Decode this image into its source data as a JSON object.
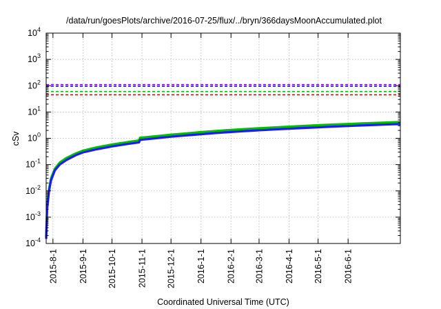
{
  "chart_data": {
    "type": "line",
    "title": "/data/run/goesPlots/archive/2016-07-25/flux/../bryn/366daysMoonAccumulated.plot",
    "xlabel": "Coordinated Universal Time (UTC)",
    "ylabel": "cSv",
    "yscale": "log",
    "ylim": [
      0.0001,
      10000
    ],
    "xlim": [
      "2015-07-25",
      "2016-07-25"
    ],
    "grid": true,
    "legend": "none",
    "x_ticks": [
      {
        "label": "2015-8-1",
        "date": "2015-08-01"
      },
      {
        "label": "2015-9-1",
        "date": "2015-09-01"
      },
      {
        "label": "2015-10-1",
        "date": "2015-10-01"
      },
      {
        "label": "2015-11-1",
        "date": "2015-11-01"
      },
      {
        "label": "2015-12-1",
        "date": "2015-12-01"
      },
      {
        "label": "2016-1-1",
        "date": "2016-01-01"
      },
      {
        "label": "2016-2-1",
        "date": "2016-02-01"
      },
      {
        "label": "2016-3-1",
        "date": "2016-03-01"
      },
      {
        "label": "2016-4-1",
        "date": "2016-04-01"
      },
      {
        "label": "2016-5-1",
        "date": "2016-05-01"
      },
      {
        "label": "2016-6-1",
        "date": "2016-06-01"
      }
    ],
    "y_ticks": [
      {
        "base": "10",
        "exp": "-4",
        "value": 0.0001
      },
      {
        "base": "10",
        "exp": "-3",
        "value": 0.001
      },
      {
        "base": "10",
        "exp": "-2",
        "value": 0.01
      },
      {
        "base": "10",
        "exp": "-1",
        "value": 0.1
      },
      {
        "base": "10",
        "exp": "0",
        "value": 1
      },
      {
        "base": "10",
        "exp": "1",
        "value": 10
      },
      {
        "base": "10",
        "exp": "2",
        "value": 100
      },
      {
        "base": "10",
        "exp": "3",
        "value": 1000
      },
      {
        "base": "10",
        "exp": "4",
        "value": 10000
      }
    ],
    "thresholds": [
      {
        "value": 110,
        "color": "#9400d3"
      },
      {
        "value": 95,
        "color": "#1a1aff"
      },
      {
        "value": 60,
        "color": "#00c000"
      },
      {
        "value": 45,
        "color": "#e00000"
      }
    ],
    "series": [
      {
        "color": "#00c000",
        "points": [
          [
            "2015-07-25",
            0.00018
          ],
          [
            "2015-07-26",
            0.0025
          ],
          [
            "2015-07-28",
            0.012
          ],
          [
            "2015-07-30",
            0.03
          ],
          [
            "2015-08-03",
            0.07
          ],
          [
            "2015-08-08",
            0.12
          ],
          [
            "2015-08-15",
            0.18
          ],
          [
            "2015-08-25",
            0.27
          ],
          [
            "2015-09-01",
            0.34
          ],
          [
            "2015-09-15",
            0.45
          ],
          [
            "2015-10-01",
            0.58
          ],
          [
            "2015-10-15",
            0.7
          ],
          [
            "2015-10-29",
            0.84
          ],
          [
            "2015-10-30",
            1.05
          ],
          [
            "2015-11-15",
            1.2
          ],
          [
            "2015-12-01",
            1.38
          ],
          [
            "2015-12-15",
            1.52
          ],
          [
            "2016-01-01",
            1.72
          ],
          [
            "2016-01-15",
            1.88
          ],
          [
            "2016-02-01",
            2.08
          ],
          [
            "2016-02-15",
            2.24
          ],
          [
            "2016-03-01",
            2.42
          ],
          [
            "2016-03-15",
            2.58
          ],
          [
            "2016-04-01",
            2.78
          ],
          [
            "2016-04-15",
            2.95
          ],
          [
            "2016-05-01",
            3.15
          ],
          [
            "2016-05-15",
            3.32
          ],
          [
            "2016-06-01",
            3.52
          ],
          [
            "2016-06-15",
            3.7
          ],
          [
            "2016-07-01",
            3.88
          ],
          [
            "2016-07-15",
            4.05
          ],
          [
            "2016-07-25",
            4.15
          ]
        ]
      },
      {
        "color": "#1a1aff",
        "points": [
          [
            "2015-07-25",
            0.00015
          ],
          [
            "2015-07-26",
            0.002
          ],
          [
            "2015-07-28",
            0.01
          ],
          [
            "2015-07-30",
            0.025
          ],
          [
            "2015-08-03",
            0.06
          ],
          [
            "2015-08-08",
            0.1
          ],
          [
            "2015-08-15",
            0.15
          ],
          [
            "2015-08-25",
            0.23
          ],
          [
            "2015-09-01",
            0.29
          ],
          [
            "2015-09-15",
            0.38
          ],
          [
            "2015-10-01",
            0.49
          ],
          [
            "2015-10-15",
            0.59
          ],
          [
            "2015-10-29",
            0.7
          ],
          [
            "2015-10-30",
            0.87
          ],
          [
            "2015-11-15",
            1.0
          ],
          [
            "2015-12-01",
            1.15
          ],
          [
            "2015-12-15",
            1.27
          ],
          [
            "2016-01-01",
            1.43
          ],
          [
            "2016-01-15",
            1.57
          ],
          [
            "2016-02-01",
            1.73
          ],
          [
            "2016-02-15",
            1.87
          ],
          [
            "2016-03-01",
            2.02
          ],
          [
            "2016-03-15",
            2.15
          ],
          [
            "2016-04-01",
            2.32
          ],
          [
            "2016-04-15",
            2.46
          ],
          [
            "2016-05-01",
            2.62
          ],
          [
            "2016-05-15",
            2.76
          ],
          [
            "2016-06-01",
            2.93
          ],
          [
            "2016-06-15",
            3.08
          ],
          [
            "2016-07-01",
            3.24
          ],
          [
            "2016-07-15",
            3.38
          ],
          [
            "2016-07-25",
            3.46
          ]
        ]
      }
    ]
  }
}
